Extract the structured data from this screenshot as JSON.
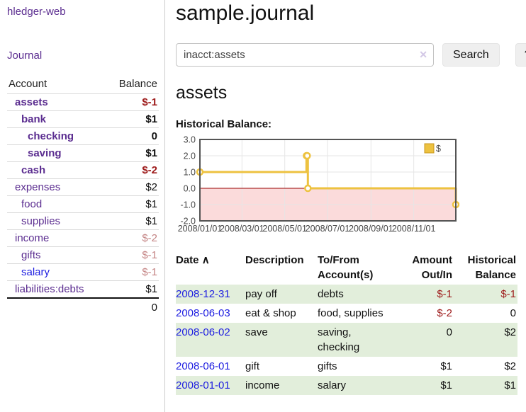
{
  "app": {
    "brand": "hledger-web",
    "nav_journal": "Journal"
  },
  "sidebar": {
    "col_account": "Account",
    "col_balance": "Balance",
    "accounts": [
      {
        "name": "assets",
        "indent": 1,
        "bold": true,
        "balance": "$-1",
        "neg": "strong"
      },
      {
        "name": "bank",
        "indent": 2,
        "bold": true,
        "balance": "$1"
      },
      {
        "name": "checking",
        "indent": 3,
        "bold": true,
        "balance": "0"
      },
      {
        "name": "saving",
        "indent": 3,
        "bold": true,
        "balance": "$1"
      },
      {
        "name": "cash",
        "indent": 2,
        "bold": true,
        "balance": "$-2",
        "neg": "strong"
      },
      {
        "name": "expenses",
        "indent": 1,
        "bold": false,
        "balance": "$2"
      },
      {
        "name": "food",
        "indent": 2,
        "bold": false,
        "balance": "$1"
      },
      {
        "name": "supplies",
        "indent": 2,
        "bold": false,
        "balance": "$1"
      },
      {
        "name": "income",
        "indent": 1,
        "bold": false,
        "balance": "$-2",
        "neg": "muted"
      },
      {
        "name": "gifts",
        "indent": 2,
        "bold": false,
        "balance": "$-1",
        "neg": "muted"
      },
      {
        "name": "salary",
        "indent": 2,
        "bold": false,
        "balance": "$-1",
        "neg": "muted",
        "link": "blue"
      },
      {
        "name": "liabilities:debts",
        "indent": 1,
        "bold": false,
        "balance": "$1"
      }
    ],
    "total": "0"
  },
  "header": {
    "title": "sample.journal"
  },
  "search": {
    "value": "inacct:assets",
    "clear_icon": "✕",
    "button": "Search",
    "help": "?"
  },
  "account_page": {
    "title": "assets",
    "chart_label": "Historical Balance:"
  },
  "chart_data": {
    "type": "line",
    "step": true,
    "title": "Historical Balance:",
    "series": [
      {
        "name": "$",
        "color": "#EDC240",
        "points": [
          [
            "2008-01-01",
            1
          ],
          [
            "2008-06-01",
            2
          ],
          [
            "2008-06-02",
            2
          ],
          [
            "2008-06-03",
            0
          ],
          [
            "2008-12-31",
            -1
          ]
        ]
      }
    ],
    "x_range": [
      "2008-01-01",
      "2008-12-31"
    ],
    "ylim": [
      -2,
      3
    ],
    "y_ticks": [
      "3.0",
      "2.0",
      "1.0",
      "0.0",
      "-1.0",
      "-2.0"
    ],
    "x_ticks": [
      "2008/01/01",
      "2008/03/01",
      "2008/05/01",
      "2008/07/01",
      "2008/09/01",
      "2008/11/01"
    ],
    "grid": true,
    "legend_position": "top-right",
    "legend_label": "$",
    "negative_fill": "#fbdbdb",
    "zero_line_color": "#990000",
    "grid_color": "#e6e6e6",
    "border_color": "#545454"
  },
  "register": {
    "columns": {
      "date": "Date",
      "sort_icon": "∧",
      "description": "Description",
      "tofrom1": "To/From",
      "tofrom2": "Account(s)",
      "amount1": "Amount",
      "amount2": "Out/In",
      "bal1": "Historical",
      "bal2": "Balance"
    },
    "rows": [
      {
        "date": "2008-12-31",
        "description": "pay off",
        "accounts": "debts",
        "amount": "$-1",
        "amount_neg": true,
        "balance": "$-1",
        "balance_neg": true,
        "shade": true
      },
      {
        "date": "2008-06-03",
        "description": "eat & shop",
        "accounts": "food, supplies",
        "amount": "$-2",
        "amount_neg": true,
        "balance": "0",
        "balance_neg": false,
        "shade": false
      },
      {
        "date": "2008-06-02",
        "description": "save",
        "accounts": "saving, checking",
        "amount": "0",
        "amount_neg": false,
        "balance": "$2",
        "balance_neg": false,
        "shade": true
      },
      {
        "date": "2008-06-01",
        "description": "gift",
        "accounts": "gifts",
        "amount": "$1",
        "amount_neg": false,
        "balance": "$2",
        "balance_neg": false,
        "shade": false
      },
      {
        "date": "2008-01-01",
        "description": "income",
        "accounts": "salary",
        "amount": "$1",
        "amount_neg": false,
        "balance": "$1",
        "balance_neg": false,
        "shade": true
      }
    ]
  }
}
